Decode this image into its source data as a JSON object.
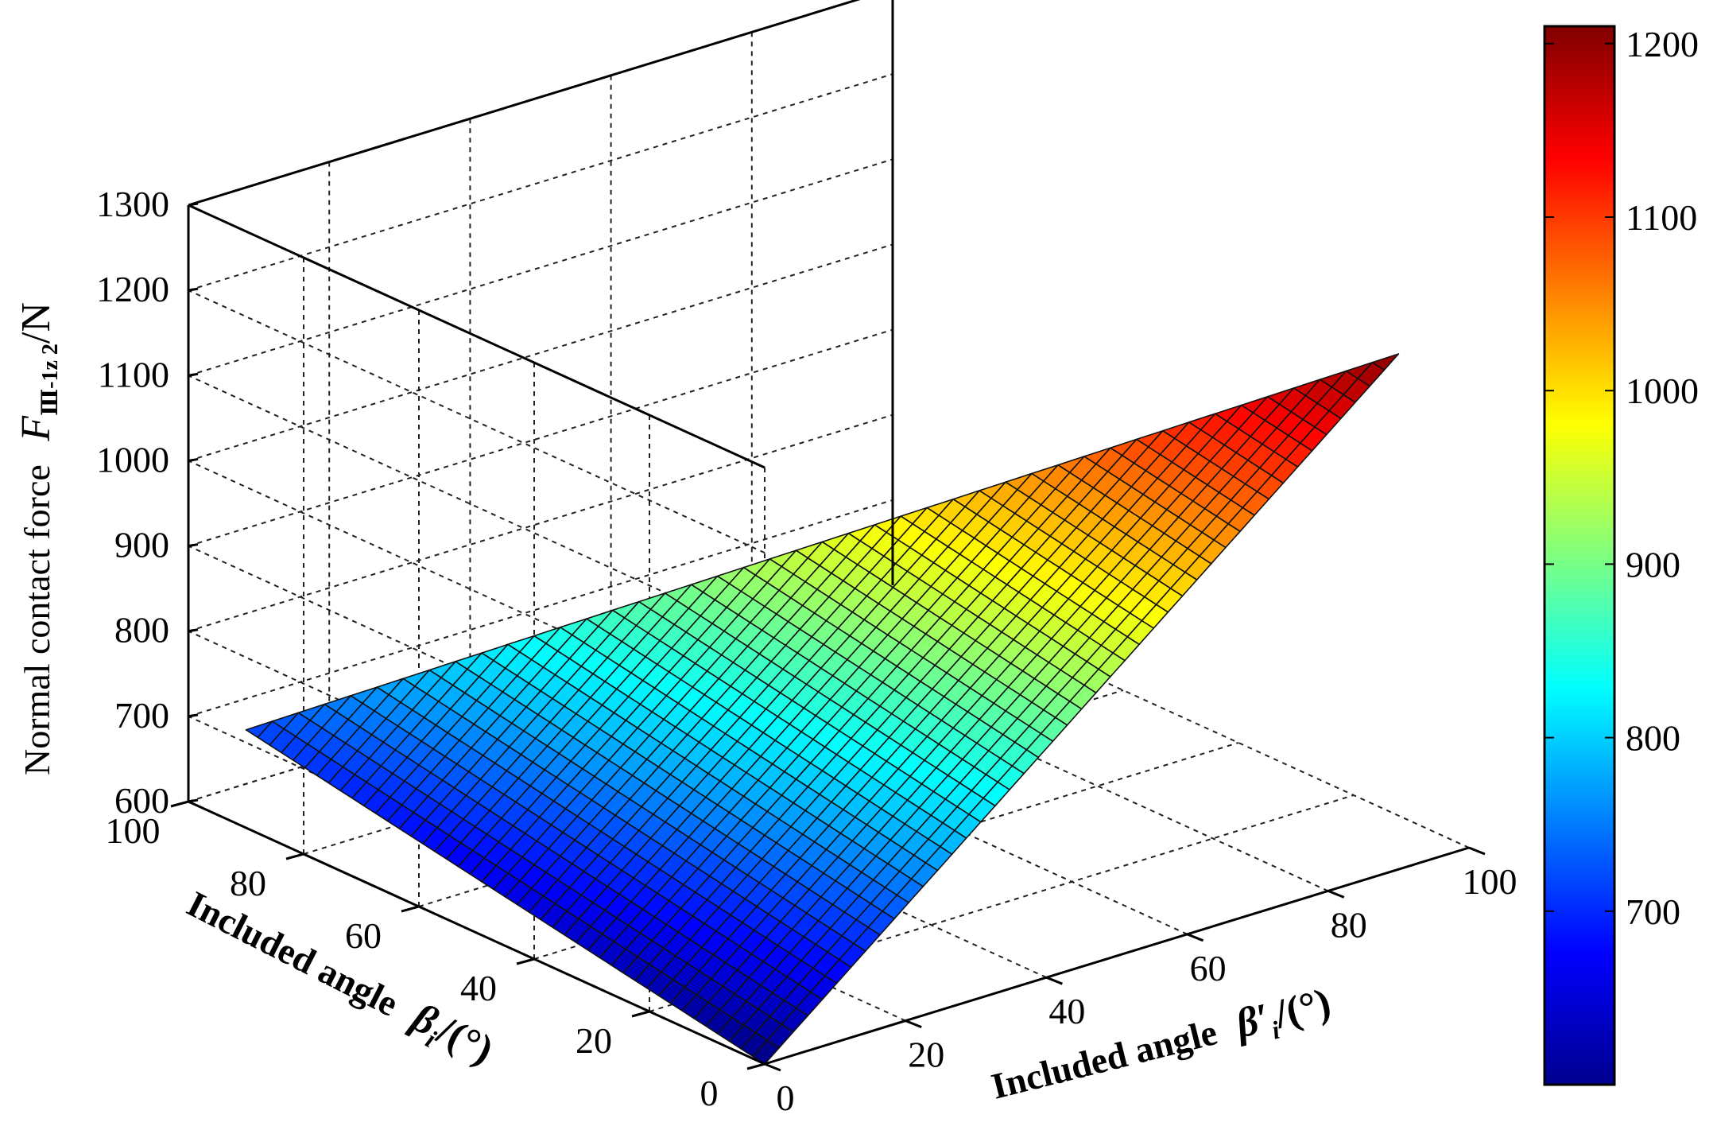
{
  "chart_data": {
    "type": "surface3d",
    "title": "",
    "x_axis": {
      "label": "Included angle",
      "symbol": "β",
      "subscript": "i",
      "unit": "/(°)",
      "range": [
        0,
        100
      ],
      "ticks": [
        "0",
        "20",
        "40",
        "60",
        "80",
        "100"
      ]
    },
    "y_axis": {
      "label": "Included angle",
      "symbol": "β′",
      "subscript": "i",
      "unit": "/(°)",
      "range": [
        0,
        100
      ],
      "ticks": [
        "0",
        "20",
        "40",
        "60",
        "80",
        "100"
      ]
    },
    "z_axis": {
      "label": "Normal contact force",
      "symbol": "F",
      "subscript": "Ⅲ-1z 2",
      "unit": "/N",
      "range": [
        600,
        1300
      ],
      "ticks": [
        "600",
        "700",
        "800",
        "900",
        "1000",
        "1100",
        "1200",
        "1300"
      ]
    },
    "surface": {
      "domain": "x + y <= 90",
      "x_range": [
        0,
        90
      ],
      "y_range": [
        0,
        90
      ],
      "grid_steps": 44,
      "corner_values": [
        {
          "x": 0,
          "y": 0,
          "z": 600
        },
        {
          "x": 90,
          "y": 0,
          "z": 715
        },
        {
          "x": 0,
          "y": 90,
          "z": 1205
        }
      ]
    },
    "colorbar": {
      "colormap": "jet",
      "range": [
        600,
        1210
      ],
      "ticks": [
        "700",
        "800",
        "900",
        "1000",
        "1100",
        "1200"
      ]
    },
    "grid": true,
    "box": true
  }
}
